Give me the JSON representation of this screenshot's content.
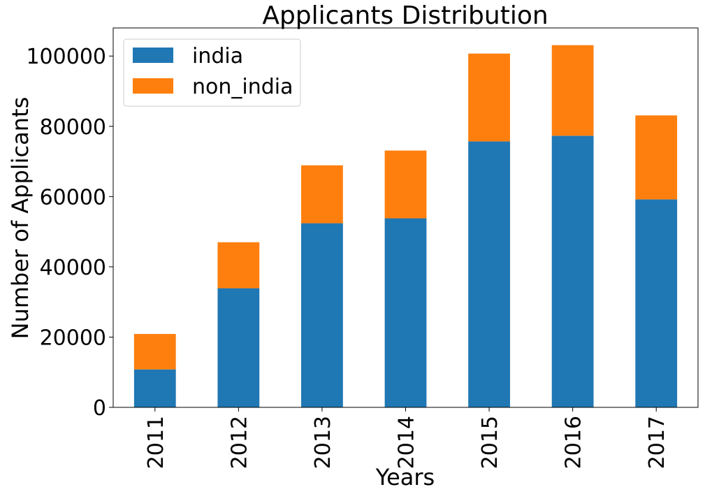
{
  "chart_data": {
    "type": "bar",
    "stacked": true,
    "title": "Applicants Distribution",
    "xlabel": "Years",
    "ylabel": "Number of Applicants",
    "categories": [
      "2011",
      "2012",
      "2013",
      "2014",
      "2015",
      "2016",
      "2017"
    ],
    "series": [
      {
        "name": "india",
        "color": "#1f77b4",
        "values": [
          10800,
          33900,
          52400,
          53800,
          75700,
          77300,
          59200
        ]
      },
      {
        "name": "non_india",
        "color": "#ff7f0e",
        "values": [
          10100,
          13100,
          16500,
          19300,
          25000,
          25800,
          23900
        ]
      }
    ],
    "ylim": [
      0,
      108000
    ],
    "yticks": [
      0,
      20000,
      40000,
      60000,
      80000,
      100000
    ],
    "legend_position": "top-left",
    "grid": false
  }
}
